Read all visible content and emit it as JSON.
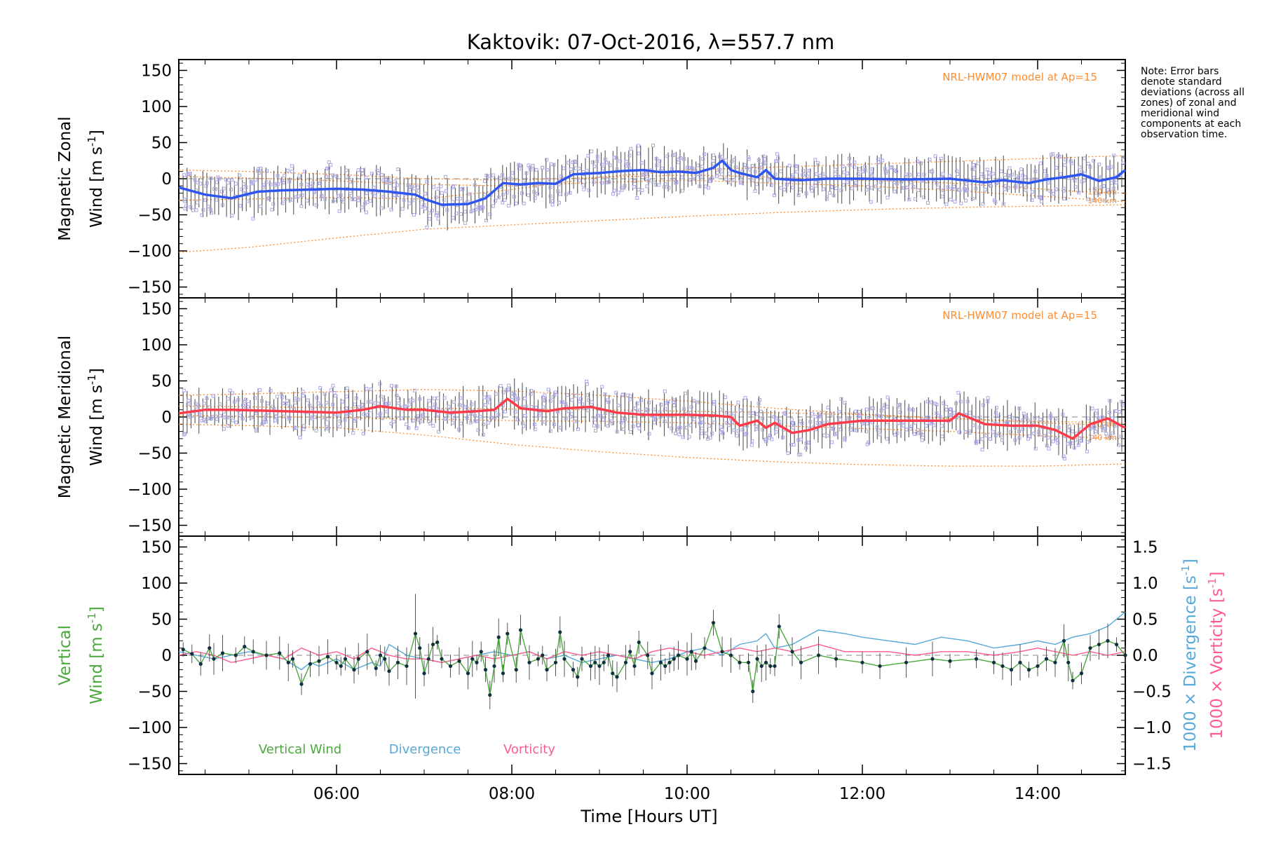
{
  "title": "Kaktovik: 07-Oct-2016, λ=557.7 nm",
  "note": "Note: Error bars denote standard deviations (across all zones) of zonal and meridional wind components at each observation time.",
  "x_axis": {
    "label": "Time [Hours UT]",
    "ticks": [
      "06:00",
      "08:00",
      "10:00",
      "12:00",
      "14:00"
    ]
  },
  "colors": {
    "zonal": "#2f55f0",
    "meridional": "#ff3a4a",
    "vertical": "#4aa83c",
    "divergence": "#55a8d8",
    "vorticity": "#ff5a8c",
    "model": "#ff8c2e",
    "samples": "#aaa8e0",
    "errorbar": "#555555"
  },
  "chart_data": [
    {
      "type": "line",
      "panel": "zonal",
      "ylabel_line1": "Magnetic Zonal",
      "ylabel_line2": "Wind [m s",
      "ylabel_sup": "-1",
      "ylabel_end": "]",
      "ylim": [
        -165,
        165
      ],
      "yticks": [
        150,
        100,
        50,
        0,
        -50,
        -100,
        -150
      ],
      "xlim": [
        4.2,
        15.0
      ],
      "model_label": "NRL-HWM07 model at Ap=15",
      "model_tags": [
        "120 km",
        "140 km"
      ],
      "series": [
        {
          "name": "zonal",
          "x": [
            4.2,
            4.5,
            4.8,
            5.1,
            5.4,
            5.7,
            6.0,
            6.3,
            6.6,
            6.9,
            7.0,
            7.2,
            7.5,
            7.7,
            7.9,
            8.1,
            8.3,
            8.5,
            8.7,
            9.0,
            9.3,
            9.5,
            9.7,
            9.9,
            10.1,
            10.3,
            10.4,
            10.5,
            10.6,
            10.8,
            10.9,
            11.0,
            11.3,
            11.6,
            12.0,
            12.5,
            13.0,
            13.4,
            13.6,
            13.9,
            14.1,
            14.3,
            14.5,
            14.7,
            14.9,
            15.0
          ],
          "y": [
            -12,
            -22,
            -27,
            -18,
            -16,
            -15,
            -14,
            -15,
            -18,
            -22,
            -28,
            -36,
            -35,
            -27,
            -6,
            -8,
            -6,
            -7,
            6,
            8,
            11,
            12,
            9,
            10,
            8,
            15,
            25,
            12,
            8,
            2,
            12,
            0,
            -2,
            0,
            0,
            -1,
            0,
            -5,
            -2,
            -6,
            -1,
            2,
            6,
            -3,
            2,
            12
          ]
        },
        {
          "name": "model-120km",
          "x": [
            4.2,
            5.0,
            6.0,
            7.0,
            8.0,
            9.0,
            10.0,
            11.0,
            12.0,
            13.0,
            14.0,
            14.5,
            15.0
          ],
          "y": [
            12,
            10,
            6,
            0,
            -2,
            2,
            5,
            2,
            -2,
            -6,
            -14,
            -18,
            -20
          ]
        },
        {
          "name": "model-140km",
          "x": [
            4.2,
            5.0,
            6.0,
            7.0,
            8.0,
            9.0,
            10.0,
            11.0,
            12.0,
            13.0,
            14.0,
            14.5,
            15.0
          ],
          "y": [
            3,
            1,
            -3,
            -8,
            -10,
            -5,
            -2,
            -6,
            -10,
            -16,
            -24,
            -28,
            -32
          ]
        },
        {
          "name": "model-upper",
          "x": [
            4.2,
            5.0,
            6.0,
            7.0,
            8.0,
            9.0,
            10.0,
            11.0,
            12.0,
            13.0,
            14.0,
            15.0
          ],
          "y": [
            -30,
            -28,
            -26,
            -28,
            -15,
            2,
            12,
            16,
            20,
            24,
            28,
            32
          ]
        },
        {
          "name": "model-lower",
          "x": [
            4.2,
            5.0,
            6.0,
            7.0,
            8.0,
            9.0,
            10.0,
            11.0,
            12.0,
            13.0,
            14.0,
            15.0
          ],
          "y": [
            -102,
            -95,
            -82,
            -70,
            -64,
            -58,
            -52,
            -47,
            -43,
            -40,
            -38,
            -36
          ]
        }
      ]
    },
    {
      "type": "line",
      "panel": "meridional",
      "ylabel_line1": "Magnetic Meridional",
      "ylabel_line2": "Wind [m s",
      "ylabel_sup": "-1",
      "ylabel_end": "]",
      "ylim": [
        -165,
        165
      ],
      "yticks": [
        150,
        100,
        50,
        0,
        -50,
        -100,
        -150
      ],
      "xlim": [
        4.2,
        15.0
      ],
      "model_label": "NRL-HWM07 model at Ap=15",
      "model_tags": [
        "120 km",
        "140 km"
      ],
      "series": [
        {
          "name": "meridional",
          "x": [
            4.2,
            4.5,
            4.8,
            5.1,
            5.4,
            5.7,
            6.0,
            6.3,
            6.5,
            6.8,
            7.0,
            7.3,
            7.6,
            7.8,
            7.95,
            8.1,
            8.4,
            8.6,
            8.9,
            9.2,
            9.5,
            9.8,
            10.0,
            10.3,
            10.5,
            10.6,
            10.8,
            10.9,
            11.0,
            11.2,
            11.4,
            11.6,
            12.0,
            12.5,
            13.0,
            13.1,
            13.4,
            13.7,
            14.0,
            14.2,
            14.4,
            14.6,
            14.8,
            15.0
          ],
          "y": [
            5,
            10,
            10,
            9,
            8,
            7,
            6,
            10,
            15,
            10,
            10,
            6,
            8,
            10,
            25,
            12,
            8,
            12,
            14,
            6,
            3,
            3,
            3,
            2,
            0,
            -12,
            -5,
            -15,
            -8,
            -22,
            -18,
            -10,
            -5,
            -5,
            -5,
            5,
            -10,
            -12,
            -12,
            -18,
            -30,
            -10,
            -2,
            -15
          ]
        },
        {
          "name": "model-120km",
          "x": [
            4.2,
            5.0,
            6.0,
            7.0,
            8.0,
            9.0,
            10.0,
            11.0,
            12.0,
            13.0,
            14.0,
            15.0
          ],
          "y": [
            15,
            14,
            13,
            12,
            11,
            10,
            8,
            6,
            3,
            -2,
            -8,
            -12
          ]
        },
        {
          "name": "model-140km",
          "x": [
            4.2,
            5.0,
            6.0,
            7.0,
            8.0,
            9.0,
            10.0,
            11.0,
            12.0,
            13.0,
            14.0,
            15.0
          ],
          "y": [
            2,
            1,
            -1,
            -3,
            -5,
            -6,
            -8,
            -12,
            -16,
            -20,
            -26,
            -30
          ]
        },
        {
          "name": "model-upper",
          "x": [
            4.2,
            5.0,
            6.0,
            7.0,
            8.0,
            9.0,
            10.0,
            11.0,
            12.0,
            13.0,
            14.0,
            15.0
          ],
          "y": [
            30,
            32,
            35,
            38,
            36,
            30,
            22,
            12,
            4,
            -2,
            -6,
            -8
          ]
        },
        {
          "name": "model-lower",
          "x": [
            4.2,
            5.0,
            6.0,
            7.0,
            8.0,
            9.0,
            10.0,
            11.0,
            12.0,
            13.0,
            14.0,
            15.0
          ],
          "y": [
            -10,
            -12,
            -15,
            -25,
            -38,
            -48,
            -56,
            -62,
            -66,
            -68,
            -68,
            -65
          ]
        }
      ]
    },
    {
      "type": "line",
      "panel": "vertical",
      "ylabel_line1": "Vertical",
      "ylabel_line2": "Wind [m s",
      "ylabel_sup": "-1",
      "ylabel_end": "]",
      "ylim": [
        -165,
        165
      ],
      "yticks": [
        150,
        100,
        50,
        0,
        -50,
        -100,
        -150
      ],
      "xlim": [
        4.2,
        15.0
      ],
      "y2lim": [
        -1.65,
        1.65
      ],
      "y2ticks": [
        1.5,
        1.0,
        0.5,
        0.0,
        -0.5,
        -1.0,
        -1.5
      ],
      "y2label_div": "1000 × Divergence [s",
      "y2label_vort": "1000 × Vorticity [s",
      "y2label_sup": "-1",
      "y2label_end": "]",
      "legend": [
        "Vertical Wind",
        "Divergence",
        "Vorticity"
      ],
      "series": [
        {
          "name": "Vertical Wind",
          "x": [
            4.25,
            4.35,
            4.45,
            4.55,
            4.6,
            4.7,
            4.85,
            4.95,
            5.05,
            5.2,
            5.35,
            5.45,
            5.5,
            5.6,
            5.7,
            5.8,
            5.9,
            6.0,
            6.05,
            6.1,
            6.2,
            6.25,
            6.35,
            6.45,
            6.5,
            6.55,
            6.6,
            6.7,
            6.8,
            6.9,
            6.95,
            7.0,
            7.05,
            7.1,
            7.15,
            7.2,
            7.3,
            7.4,
            7.5,
            7.55,
            7.6,
            7.65,
            7.7,
            7.75,
            7.8,
            7.85,
            7.9,
            7.95,
            8.05,
            8.1,
            8.2,
            8.3,
            8.35,
            8.4,
            8.5,
            8.55,
            8.6,
            8.7,
            8.75,
            8.8,
            8.9,
            8.95,
            9.0,
            9.05,
            9.1,
            9.15,
            9.2,
            9.3,
            9.35,
            9.4,
            9.45,
            9.55,
            9.6,
            9.7,
            9.75,
            9.8,
            9.85,
            9.9,
            10.0,
            10.05,
            10.1,
            10.2,
            10.3,
            10.4,
            10.5,
            10.6,
            10.7,
            10.75,
            10.8,
            10.85,
            10.9,
            10.95,
            11.0,
            11.05,
            11.2,
            11.3,
            11.5,
            11.7,
            12.0,
            12.2,
            12.5,
            12.8,
            13.0,
            13.3,
            13.5,
            13.6,
            13.7,
            13.8,
            13.9,
            14.0,
            14.1,
            14.2,
            14.3,
            14.35,
            14.4,
            14.5,
            14.6,
            14.7,
            14.8,
            14.9,
            15.0
          ],
          "y": [
            8,
            2,
            -12,
            10,
            -5,
            3,
            0,
            12,
            5,
            0,
            3,
            -10,
            -5,
            -40,
            -12,
            -8,
            -2,
            -10,
            -15,
            -5,
            -20,
            -5,
            5,
            -18,
            0,
            -5,
            -22,
            -10,
            -15,
            30,
            10,
            -25,
            -5,
            15,
            18,
            -5,
            -15,
            -8,
            -25,
            -5,
            -10,
            5,
            -20,
            -55,
            -15,
            25,
            -25,
            30,
            -20,
            35,
            -10,
            -5,
            0,
            -20,
            -10,
            32,
            -5,
            -20,
            -30,
            -5,
            -15,
            -10,
            -15,
            -10,
            0,
            -25,
            -30,
            -10,
            5,
            -15,
            18,
            0,
            -25,
            -10,
            -15,
            -10,
            -5,
            0,
            -5,
            5,
            -8,
            10,
            45,
            5,
            0,
            -10,
            -10,
            -50,
            -5,
            -15,
            -10,
            -15,
            -15,
            40,
            5,
            -10,
            0,
            -5,
            -10,
            -15,
            -10,
            -5,
            -8,
            -5,
            -10,
            -15,
            -20,
            -10,
            -20,
            -15,
            -5,
            -10,
            20,
            -10,
            -35,
            -25,
            10,
            15,
            20,
            15,
            0
          ]
        },
        {
          "name": "Divergence",
          "x": [
            4.2,
            4.4,
            4.6,
            4.8,
            5.0,
            5.2,
            5.4,
            5.6,
            5.7,
            5.8,
            6.0,
            6.2,
            6.4,
            6.5,
            6.6,
            6.8,
            7.0,
            7.2,
            7.4,
            7.6,
            7.8,
            8.0,
            8.2,
            8.4,
            8.6,
            8.8,
            9.0,
            9.2,
            9.4,
            9.6,
            9.8,
            10.0,
            10.2,
            10.4,
            10.6,
            10.8,
            10.9,
            11.0,
            11.2,
            11.5,
            11.8,
            12.0,
            12.3,
            12.6,
            12.9,
            13.2,
            13.5,
            13.8,
            14.0,
            14.2,
            14.4,
            14.6,
            14.8,
            15.0
          ],
          "y": [
            0.05,
            0.0,
            -0.05,
            0.0,
            0.05,
            0.0,
            -0.05,
            -0.2,
            -0.1,
            -0.15,
            -0.05,
            -0.2,
            -0.1,
            -0.15,
            0.15,
            0.0,
            -0.05,
            -0.1,
            -0.05,
            0.0,
            0.05,
            0.0,
            0.05,
            -0.05,
            0.0,
            -0.1,
            -0.05,
            0.0,
            -0.05,
            -0.1,
            -0.05,
            0.05,
            0.1,
            0.0,
            0.15,
            0.2,
            0.3,
            0.1,
            0.15,
            0.35,
            0.3,
            0.25,
            0.2,
            0.15,
            0.25,
            0.2,
            0.1,
            0.15,
            0.2,
            0.15,
            0.25,
            0.3,
            0.4,
            0.6
          ]
        },
        {
          "name": "Vorticity",
          "x": [
            4.2,
            4.4,
            4.6,
            4.8,
            5.0,
            5.2,
            5.4,
            5.6,
            5.8,
            6.0,
            6.2,
            6.4,
            6.5,
            6.6,
            6.8,
            7.0,
            7.2,
            7.4,
            7.6,
            7.8,
            8.0,
            8.2,
            8.4,
            8.6,
            8.8,
            9.0,
            9.2,
            9.4,
            9.6,
            9.8,
            10.0,
            10.2,
            10.4,
            10.6,
            10.8,
            11.0,
            11.2,
            11.5,
            11.8,
            12.0,
            12.3,
            12.6,
            12.9,
            13.2,
            13.5,
            13.8,
            14.0,
            14.2,
            14.4,
            14.6,
            14.8,
            15.0
          ],
          "y": [
            0.0,
            0.05,
            0.0,
            -0.1,
            -0.05,
            0.0,
            -0.05,
            0.1,
            0.0,
            0.05,
            -0.05,
            0.1,
            0.05,
            0.0,
            -0.05,
            -0.05,
            -0.1,
            -0.05,
            0.0,
            -0.05,
            0.0,
            0.05,
            -0.05,
            0.05,
            0.0,
            0.05,
            0.0,
            -0.05,
            0.05,
            0.1,
            0.05,
            0.0,
            0.05,
            0.1,
            0.05,
            0.1,
            0.05,
            0.15,
            0.05,
            0.05,
            0.05,
            0.0,
            0.05,
            0.05,
            0.0,
            0.05,
            0.1,
            0.05,
            0.0,
            0.05,
            0.0,
            0.05
          ]
        }
      ]
    }
  ]
}
